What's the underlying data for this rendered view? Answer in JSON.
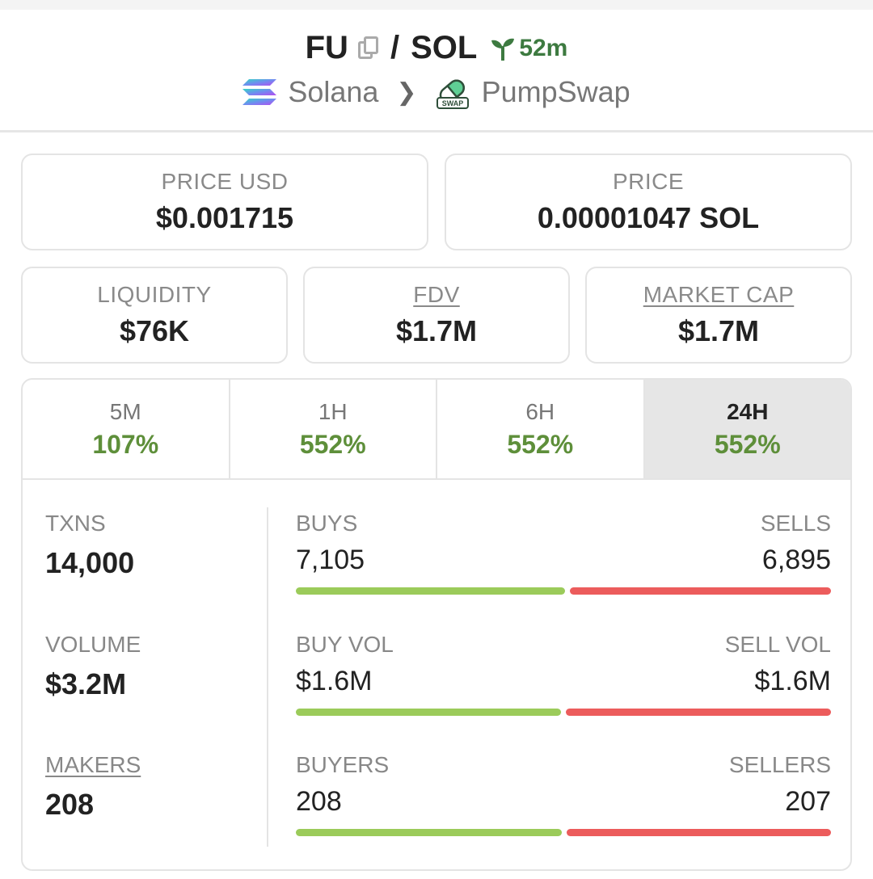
{
  "header": {
    "base_symbol": "FU",
    "separator": "/",
    "quote_symbol": "SOL",
    "age": "52m",
    "chain": "Solana",
    "dex": "PumpSwap",
    "dex_logo_text": "SWAP",
    "icons": {
      "copy": "copy-icon",
      "age": "seedling-icon",
      "chain": "solana-logo",
      "dex": "pumpswap-logo",
      "chevron": "chevron-right-icon"
    }
  },
  "price_cards": [
    {
      "label": "PRICE USD",
      "value": "$0.001715"
    },
    {
      "label": "PRICE",
      "value": "0.00001047 SOL"
    }
  ],
  "metric_cards": [
    {
      "label": "LIQUIDITY",
      "value": "$76K"
    },
    {
      "label": "FDV",
      "value": "$1.7M"
    },
    {
      "label": "MARKET CAP",
      "value": "$1.7M"
    }
  ],
  "tabs": [
    {
      "label": "5M",
      "change": "107%"
    },
    {
      "label": "1H",
      "change": "552%"
    },
    {
      "label": "6H",
      "change": "552%"
    },
    {
      "label": "24H",
      "change": "552%",
      "active": true
    }
  ],
  "stats": {
    "txns": {
      "label": "TXNS",
      "value": "14,000"
    },
    "volume": {
      "label": "VOLUME",
      "value": "$3.2M"
    },
    "makers": {
      "label": "MAKERS",
      "value": "208"
    },
    "buys_sells": {
      "left_label": "BUYS",
      "left_value": "7,105",
      "right_label": "SELLS",
      "right_value": "6,895",
      "buy_ratio": 0.5075
    },
    "vol": {
      "left_label": "BUY VOL",
      "left_value": "$1.6M",
      "right_label": "SELL VOL",
      "right_value": "$1.6M",
      "buy_ratio": 0.5
    },
    "makers_split": {
      "left_label": "BUYERS",
      "left_value": "208",
      "right_label": "SELLERS",
      "right_value": "207",
      "buy_ratio": 0.5012
    }
  },
  "colors": {
    "positive": "#5e8f3a",
    "buy_bar": "#9bcb5a",
    "sell_bar": "#ec5c5c",
    "age_green": "#3d7a40"
  }
}
